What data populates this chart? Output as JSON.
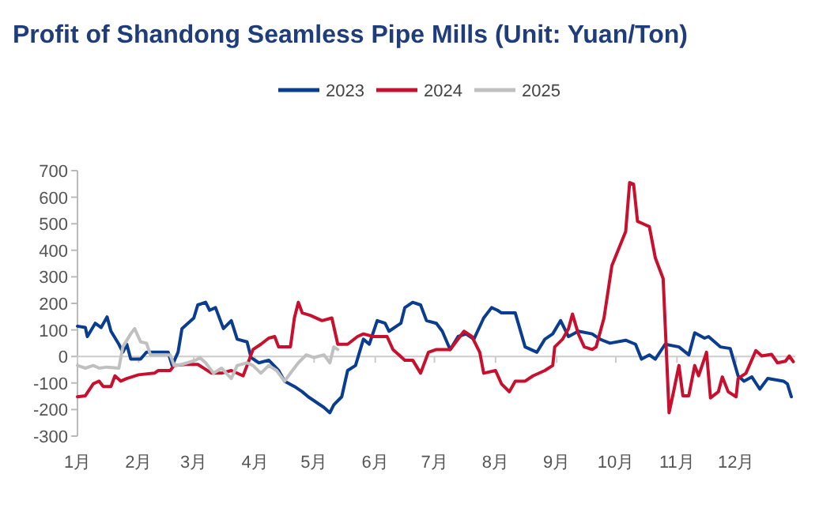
{
  "chart_data": {
    "type": "line",
    "title": "Profit of Shandong Seamless Pipe Mills (Unit: Yuan/Ton)",
    "legend": "top",
    "xlim": [
      "--01-01",
      "--12-31"
    ],
    "xticks": [
      {
        "value": "--01-01",
        "label": "1月"
      },
      {
        "value": "--02-01",
        "label": "2月"
      },
      {
        "value": "--03-01",
        "label": "3月"
      },
      {
        "value": "--04-01",
        "label": "4月"
      },
      {
        "value": "--05-01",
        "label": "5月"
      },
      {
        "value": "--06-01",
        "label": "6月"
      },
      {
        "value": "--07-01",
        "label": "7月"
      },
      {
        "value": "--08-01",
        "label": "8月"
      },
      {
        "value": "--09-01",
        "label": "9月"
      },
      {
        "value": "--10-01",
        "label": "10月"
      },
      {
        "value": "--11-01",
        "label": "11月"
      },
      {
        "value": "--12-01",
        "label": "12月"
      }
    ],
    "ylim": [
      -300,
      700
    ],
    "yticks": [
      -300,
      -200,
      -100,
      0,
      100,
      200,
      300,
      400,
      500,
      600,
      700
    ],
    "series": [
      {
        "name": "2023",
        "color": "#0a3d8f",
        "x": [
          "--01-01",
          "--01-05",
          "--01-06",
          "--01-10",
          "--01-13",
          "--01-16",
          "--01-18",
          "--01-22",
          "--01-24",
          "--01-26",
          "--01-28",
          "--02-02",
          "--02-05",
          "--02-16",
          "--02-18",
          "--02-21",
          "--02-23",
          "--03-01",
          "--03-03",
          "--03-07",
          "--03-09",
          "--03-12",
          "--03-16",
          "--03-20",
          "--03-23",
          "--03-28",
          "--03-30",
          "--04-03",
          "--04-08",
          "--04-13",
          "--04-16",
          "--04-21",
          "--04-25",
          "--04-28",
          "--05-02",
          "--05-06",
          "--05-09",
          "--05-11",
          "--05-15",
          "--05-18",
          "--05-22",
          "--05-26",
          "--05-29",
          "--06-02",
          "--06-06",
          "--06-08",
          "--06-14",
          "--06-16",
          "--06-20",
          "--06-24",
          "--06-27",
          "--07-02",
          "--07-05",
          "--07-09",
          "--07-13",
          "--07-17",
          "--07-21",
          "--07-26",
          "--07-30",
          "--08-02",
          "--08-04",
          "--08-11",
          "--08-16",
          "--08-22",
          "--08-26",
          "--08-30",
          "--09-03",
          "--09-07",
          "--09-12",
          "--09-19",
          "--09-23",
          "--09-28",
          "--10-06",
          "--10-11",
          "--10-14",
          "--10-18",
          "--10-21",
          "--10-26",
          "--11-02",
          "--11-07",
          "--11-10",
          "--11-15",
          "--11-17",
          "--11-23",
          "--11-28",
          "--12-02",
          "--12-05",
          "--12-09",
          "--12-13",
          "--12-17",
          "--12-25",
          "--12-27",
          "--12-29"
        ],
        "values": [
          114,
          109,
          75,
          125,
          109,
          149,
          95,
          46,
          16,
          46,
          -10,
          -10,
          16,
          16,
          -34,
          16,
          105,
          145,
          194,
          204,
          174,
          184,
          105,
          135,
          65,
          55,
          -4,
          -24,
          -14,
          -53,
          -93,
          -113,
          -133,
          -152,
          -172,
          -192,
          -212,
          -182,
          -152,
          -53,
          -34,
          65,
          46,
          135,
          125,
          95,
          125,
          184,
          204,
          194,
          135,
          125,
          95,
          26,
          75,
          85,
          65,
          145,
          184,
          174,
          164,
          164,
          36,
          16,
          65,
          85,
          135,
          75,
          95,
          85,
          65,
          50,
          61,
          46,
          -10,
          6,
          -10,
          46,
          36,
          6,
          89,
          69,
          75,
          36,
          30,
          -73,
          -93,
          -77,
          -123,
          -83,
          -93,
          -103,
          -152
        ]
      },
      {
        "name": "2024",
        "color": "#c8102e",
        "x": [
          "--01-01",
          "--01-05",
          "--01-09",
          "--01-12",
          "--01-14",
          "--01-18",
          "--01-20",
          "--01-23",
          "--01-26",
          "--02-01",
          "--02-09",
          "--02-11",
          "--02-17",
          "--02-19",
          "--02-25",
          "--03-03",
          "--03-10",
          "--03-15",
          "--03-20",
          "--03-26",
          "--03-28",
          "--03-31",
          "--04-04",
          "--04-08",
          "--04-11",
          "--04-13",
          "--04-19",
          "--04-21",
          "--04-23",
          "--04-25",
          "--04-29",
          "--05-05",
          "--05-10",
          "--05-13",
          "--05-18",
          "--05-23",
          "--05-26",
          "--05-31",
          "--06-07",
          "--06-10",
          "--06-16",
          "--06-20",
          "--06-24",
          "--06-28",
          "--07-02",
          "--07-09",
          "--07-16",
          "--07-20",
          "--07-24",
          "--07-26",
          "--08-01",
          "--08-04",
          "--08-08",
          "--08-11",
          "--08-16",
          "--08-20",
          "--08-26",
          "--08-30",
          "--08-31",
          "--09-04",
          "--09-07",
          "--09-09",
          "--09-12",
          "--09-15",
          "--09-19",
          "--09-21",
          "--09-25",
          "--09-29",
          "--10-06",
          "--10-08",
          "--10-10",
          "--10-12",
          "--10-15",
          "--10-18",
          "--10-21",
          "--10-25",
          "--10-28",
          "--10-30",
          "--11-02",
          "--11-04",
          "--11-07",
          "--11-10",
          "--11-12",
          "--11-16",
          "--11-18",
          "--11-22",
          "--11-24",
          "--11-27",
          "--12-01",
          "--12-02",
          "--12-06",
          "--12-11",
          "--12-14",
          "--12-19",
          "--12-22",
          "--12-26",
          "--12-28",
          "--12-30"
        ],
        "values": [
          -152,
          -148,
          -103,
          -93,
          -113,
          -113,
          -73,
          -93,
          -83,
          -69,
          -63,
          -53,
          -53,
          -34,
          -30,
          -30,
          -63,
          -63,
          -53,
          -73,
          -34,
          26,
          46,
          69,
          75,
          36,
          36,
          145,
          204,
          164,
          155,
          135,
          145,
          46,
          46,
          75,
          85,
          75,
          75,
          26,
          -14,
          -14,
          -63,
          16,
          26,
          26,
          95,
          75,
          16,
          -63,
          -53,
          -103,
          -133,
          -93,
          -93,
          -73,
          -53,
          -34,
          36,
          65,
          105,
          160,
          85,
          36,
          26,
          36,
          145,
          342,
          471,
          655,
          649,
          509,
          499,
          489,
          372,
          293,
          -212,
          -143,
          -34,
          -148,
          -148,
          -34,
          -73,
          16,
          -156,
          -133,
          -77,
          -133,
          -152,
          -83,
          -63,
          22,
          2,
          8,
          -24,
          -18,
          2,
          -20
        ]
      },
      {
        "name": "2025",
        "color": "#c0c0c0",
        "x": [
          "--01-01",
          "--01-05",
          "--01-09",
          "--01-12",
          "--01-16",
          "--01-22",
          "--01-24",
          "--01-28",
          "--01-30",
          "--02-02",
          "--02-05",
          "--02-07",
          "--02-17",
          "--02-19",
          "--02-23",
          "--03-02",
          "--03-04",
          "--03-07",
          "--03-11",
          "--03-15",
          "--03-20",
          "--03-23",
          "--03-28",
          "--03-31",
          "--04-04",
          "--04-08",
          "--04-12",
          "--04-16",
          "--04-20",
          "--04-23",
          "--04-27",
          "--05-01",
          "--05-06",
          "--05-09",
          "--05-11",
          "--05-13"
        ],
        "values": [
          -34,
          -44,
          -34,
          -44,
          -40,
          -44,
          36,
          85,
          105,
          55,
          50,
          6,
          6,
          -34,
          -30,
          -14,
          -4,
          -24,
          -63,
          -44,
          -83,
          -34,
          -24,
          -34,
          -63,
          -34,
          -53,
          -93,
          -53,
          -24,
          6,
          -4,
          6,
          -24,
          36,
          26
        ]
      }
    ]
  }
}
